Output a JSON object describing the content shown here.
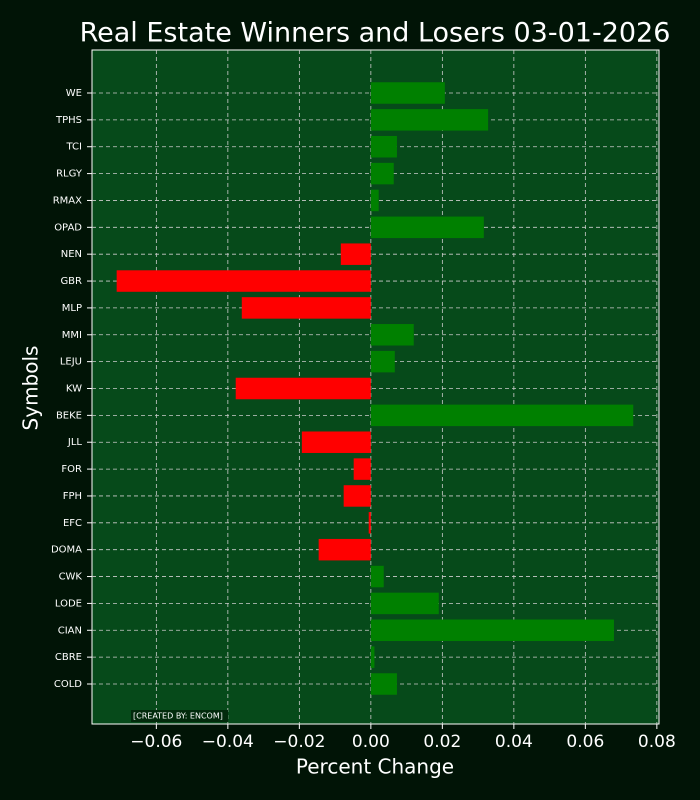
{
  "chart_data": {
    "type": "barh",
    "title": "Real Estate Winners and Losers 03-01-2026",
    "x_label": "Percent Change",
    "y_label": "Symbols",
    "annotation": "[CREATED BY: ENCOM]",
    "categories": [
      "COLD",
      "CBRE",
      "CIAN",
      "LODE",
      "CWK",
      "DOMA",
      "EFC",
      "FPH",
      "FOR",
      "JLL",
      "BEKE",
      "KW",
      "LEJU",
      "MMI",
      "MLP",
      "GBR",
      "NEN",
      "OPAD",
      "RMAX",
      "RLGY",
      "TCI",
      "TPHS",
      "WE"
    ],
    "values": [
      0.0073,
      0.001,
      0.068,
      0.019,
      0.0036,
      -0.0146,
      -0.0006,
      -0.0076,
      -0.0048,
      -0.0193,
      0.0734,
      -0.0378,
      0.0067,
      0.012,
      -0.0361,
      -0.0711,
      -0.0084,
      0.0316,
      0.0022,
      0.0064,
      0.0073,
      0.0328,
      0.0207
    ],
    "positive_color": "#008000",
    "negative_color": "#ff0000",
    "xlim": [
      -0.078,
      0.0806
    ],
    "xticks": [
      {
        "value": -0.06,
        "label": "−0.06"
      },
      {
        "value": -0.04,
        "label": "−0.04"
      },
      {
        "value": -0.02,
        "label": "−0.02"
      },
      {
        "value": 0,
        "label": "0.00"
      },
      {
        "value": 0.02,
        "label": "0.02"
      },
      {
        "value": 0.04,
        "label": "0.04"
      },
      {
        "value": 0.06,
        "label": "0.06"
      },
      {
        "value": 0.08,
        "label": "0.08"
      }
    ],
    "grid": true
  }
}
